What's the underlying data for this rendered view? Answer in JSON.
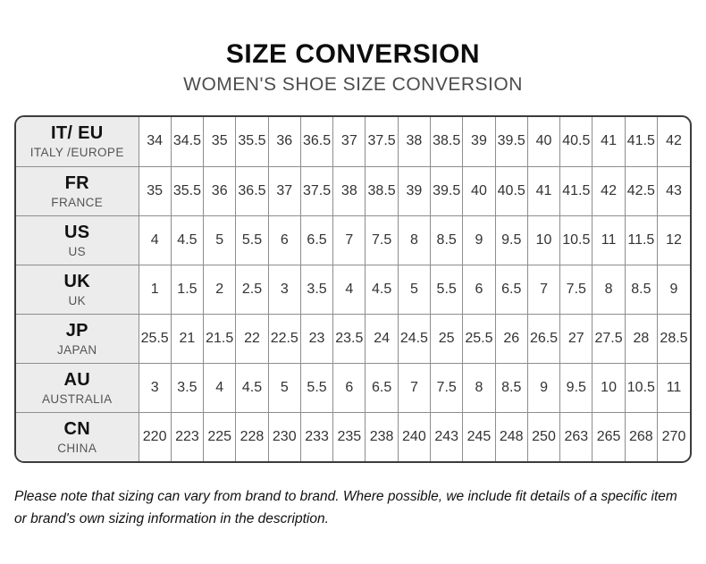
{
  "header": {
    "title": "SIZE CONVERSION",
    "subtitle": "WOMEN'S SHOE SIZE CONVERSION"
  },
  "table": {
    "rows": [
      {
        "code": "IT/ EU",
        "region": "ITALY /EUROPE",
        "values": [
          "34",
          "34.5",
          "35",
          "35.5",
          "36",
          "36.5",
          "37",
          "37.5",
          "38",
          "38.5",
          "39",
          "39.5",
          "40",
          "40.5",
          "41",
          "41.5",
          "42"
        ]
      },
      {
        "code": "FR",
        "region": "FRANCE",
        "values": [
          "35",
          "35.5",
          "36",
          "36.5",
          "37",
          "37.5",
          "38",
          "38.5",
          "39",
          "39.5",
          "40",
          "40.5",
          "41",
          "41.5",
          "42",
          "42.5",
          "43"
        ]
      },
      {
        "code": "US",
        "region": "US",
        "values": [
          "4",
          "4.5",
          "5",
          "5.5",
          "6",
          "6.5",
          "7",
          "7.5",
          "8",
          "8.5",
          "9",
          "9.5",
          "10",
          "10.5",
          "11",
          "11.5",
          "12"
        ]
      },
      {
        "code": "UK",
        "region": "UK",
        "values": [
          "1",
          "1.5",
          "2",
          "2.5",
          "3",
          "3.5",
          "4",
          "4.5",
          "5",
          "5.5",
          "6",
          "6.5",
          "7",
          "7.5",
          "8",
          "8.5",
          "9"
        ]
      },
      {
        "code": "JP",
        "region": "JAPAN",
        "values": [
          "25.5",
          "21",
          "21.5",
          "22",
          "22.5",
          "23",
          "23.5",
          "24",
          "24.5",
          "25",
          "25.5",
          "26",
          "26.5",
          "27",
          "27.5",
          "28",
          "28.5"
        ]
      },
      {
        "code": "AU",
        "region": "AUSTRALIA",
        "values": [
          "3",
          "3.5",
          "4",
          "4.5",
          "5",
          "5.5",
          "6",
          "6.5",
          "7",
          "7.5",
          "8",
          "8.5",
          "9",
          "9.5",
          "10",
          "10.5",
          "11"
        ]
      },
      {
        "code": "CN",
        "region": "CHINA",
        "values": [
          "220",
          "223",
          "225",
          "228",
          "230",
          "233",
          "235",
          "238",
          "240",
          "243",
          "245",
          "248",
          "250",
          "263",
          "265",
          "268",
          "270"
        ]
      }
    ]
  },
  "footer": {
    "note": "Please note that sizing can vary from brand to brand. Where possible, we include fit details of a specific item or brand's own sizing information in the description."
  },
  "colors": {
    "title_text": "#0d0d0d",
    "subtitle_text": "#4d4d4d",
    "header_cell_bg": "#ececec",
    "outer_border": "#3c3c3c",
    "inner_border": "#8d8d8d",
    "cell_text": "#333333"
  }
}
